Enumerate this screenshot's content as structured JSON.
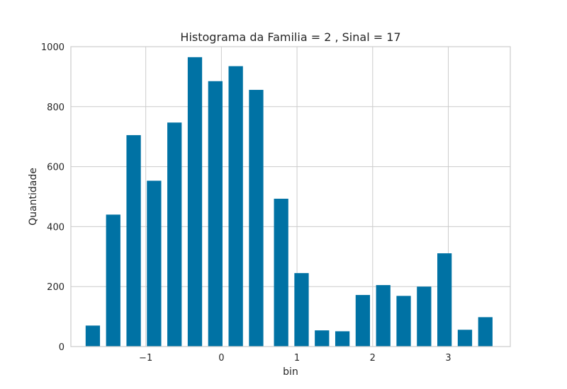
{
  "chart_data": {
    "type": "bar",
    "title": "Histograma da Familia = 2 , Sinal = 17",
    "xlabel": "bin",
    "ylabel": "Quantidade",
    "xlim": [
      -1.99,
      3.82
    ],
    "ylim": [
      0,
      1000
    ],
    "xticks": [
      -1,
      0,
      1,
      2,
      3
    ],
    "xtick_labels": [
      "−1",
      "0",
      "1",
      "2",
      "3"
    ],
    "yticks": [
      0,
      200,
      400,
      600,
      800,
      1000
    ],
    "ytick_labels": [
      "0",
      "200",
      "400",
      "600",
      "800",
      "1000"
    ],
    "grid": true,
    "bar_color": "#0072a4",
    "bar_width": 0.19,
    "x": [
      -1.7,
      -1.43,
      -1.16,
      -0.89,
      -0.62,
      -0.35,
      -0.08,
      0.19,
      0.46,
      0.79,
      1.06,
      1.33,
      1.6,
      1.87,
      2.14,
      2.41,
      2.68,
      2.95,
      3.22,
      3.49
    ],
    "values": [
      70,
      440,
      705,
      553,
      747,
      965,
      885,
      935,
      856,
      493,
      245,
      54,
      51,
      172,
      205,
      169,
      200,
      311,
      56,
      98
    ]
  }
}
